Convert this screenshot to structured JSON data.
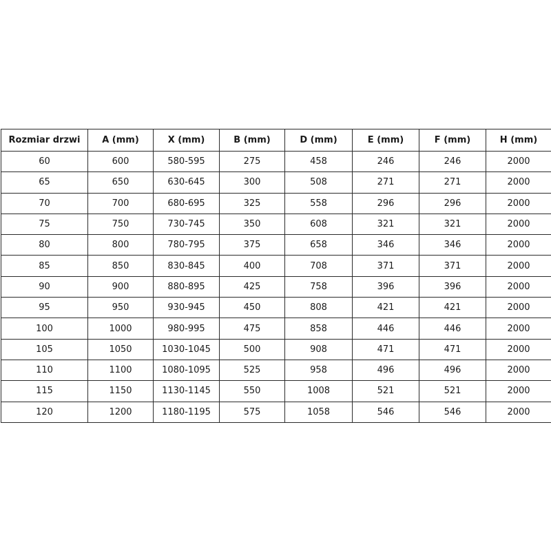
{
  "table": {
    "headers": [
      "Rozmiar drzwi",
      "A (mm)",
      "X (mm)",
      "B (mm)",
      "D (mm)",
      "E (mm)",
      "F (mm)",
      "H (mm)"
    ],
    "rows": [
      [
        "60",
        "600",
        "580-595",
        "275",
        "458",
        "246",
        "246",
        "2000"
      ],
      [
        "65",
        "650",
        "630-645",
        "300",
        "508",
        "271",
        "271",
        "2000"
      ],
      [
        "70",
        "700",
        "680-695",
        "325",
        "558",
        "296",
        "296",
        "2000"
      ],
      [
        "75",
        "750",
        "730-745",
        "350",
        "608",
        "321",
        "321",
        "2000"
      ],
      [
        "80",
        "800",
        "780-795",
        "375",
        "658",
        "346",
        "346",
        "2000"
      ],
      [
        "85",
        "850",
        "830-845",
        "400",
        "708",
        "371",
        "371",
        "2000"
      ],
      [
        "90",
        "900",
        "880-895",
        "425",
        "758",
        "396",
        "396",
        "2000"
      ],
      [
        "95",
        "950",
        "930-945",
        "450",
        "808",
        "421",
        "421",
        "2000"
      ],
      [
        "100",
        "1000",
        "980-995",
        "475",
        "858",
        "446",
        "446",
        "2000"
      ],
      [
        "105",
        "1050",
        "1030-1045",
        "500",
        "908",
        "471",
        "471",
        "2000"
      ],
      [
        "110",
        "1100",
        "1080-1095",
        "525",
        "958",
        "496",
        "496",
        "2000"
      ],
      [
        "115",
        "1150",
        "1130-1145",
        "550",
        "1008",
        "521",
        "521",
        "2000"
      ],
      [
        "120",
        "1200",
        "1180-1195",
        "575",
        "1058",
        "546",
        "546",
        "2000"
      ]
    ]
  }
}
